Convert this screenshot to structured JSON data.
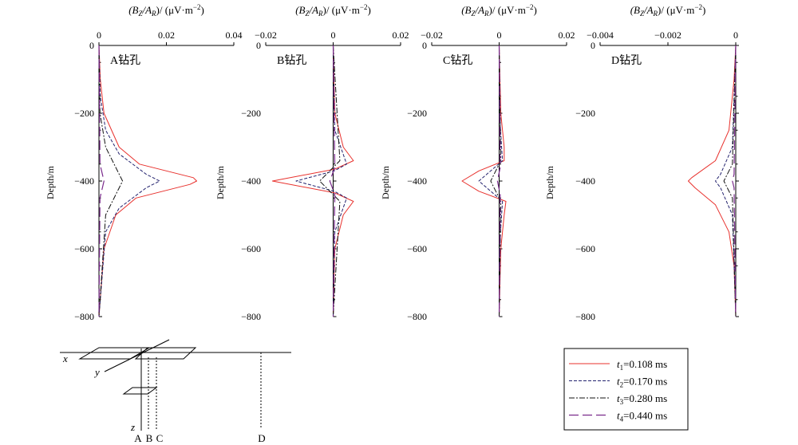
{
  "colors": {
    "t1": "#e8312d",
    "t2": "#23226e",
    "t3": "#111111",
    "t4": "#7a2b8c",
    "axis": "#000000"
  },
  "legend": [
    {
      "sym": "t",
      "sub": "1",
      "rest": "=0.108 ms"
    },
    {
      "sym": "t",
      "sub": "2",
      "rest": "=0.170 ms"
    },
    {
      "sym": "t",
      "sub": "3",
      "rest": "=0.280 ms"
    },
    {
      "sym": "t",
      "sub": "4",
      "rest": "=0.440 ms"
    }
  ],
  "panels": [
    {
      "label": "A钻孔",
      "ylabel": "Depth/m",
      "xhead": {
        "p1": "(B",
        "s1": "Z",
        "m": "/A",
        "s2": "R",
        "tail": ")/ (μV·m",
        "sup": "−2",
        "end": ")"
      },
      "xlim": [
        0,
        0.04
      ],
      "xticks": [
        "0",
        "0.02",
        "0.04"
      ],
      "yticks": [
        "0",
        "−200",
        "−400",
        "−600",
        "−800"
      ]
    },
    {
      "label": "B钻孔",
      "ylabel": "Depth/m",
      "xhead": {
        "p1": "(B",
        "s1": "Z",
        "m": "/A",
        "s2": "R",
        "tail": ")/ (μV·m",
        "sup": "−2",
        "end": ")"
      },
      "xlim": [
        -0.02,
        0.02
      ],
      "xticks": [
        "−0.02",
        "0",
        "0.02"
      ],
      "yticks": [
        "0",
        "−200",
        "−400",
        "−600",
        "−800"
      ]
    },
    {
      "label": "C钻孔",
      "ylabel": "Depth/m",
      "xhead": {
        "p1": "(B",
        "s1": "Z",
        "m": "/A",
        "s2": "R",
        "tail": ")/ (μV·m",
        "sup": "−2",
        "end": ")"
      },
      "xlim": [
        -0.02,
        0.02
      ],
      "xticks": [
        "−0.02",
        "0",
        "0.02"
      ],
      "yticks": [
        "0",
        "−200",
        "−400",
        "−600",
        "−800"
      ]
    },
    {
      "label": "D钻孔",
      "ylabel": "Depth/m",
      "xhead": {
        "p1": "(B",
        "s1": "Z",
        "m": "/A",
        "s2": "R",
        "tail": ")/ (μV·m",
        "sup": "−2",
        "end": ")"
      },
      "xlim": [
        -0.004,
        0
      ],
      "xticks": [
        "−0.004",
        "−0.002",
        "0"
      ],
      "yticks": [
        "0",
        "−200",
        "−400",
        "−600",
        "−800"
      ]
    }
  ],
  "schematic": {
    "x": "x",
    "y": "y",
    "z": "z",
    "holes": [
      "A",
      "B",
      "C",
      "D"
    ]
  },
  "chart_data": [
    {
      "type": "line",
      "title": "A钻孔",
      "xlabel": "(B_Z/A_R)/ (μV·m^-2)",
      "ylabel": "Depth/m",
      "xlim": [
        0,
        0.04
      ],
      "ylim": [
        -800,
        0
      ],
      "grid": false,
      "series": [
        {
          "name": "t1=0.108 ms",
          "points": [
            [
              0,
              0
            ],
            [
              0.0004,
              -100
            ],
            [
              0.0015,
              -200
            ],
            [
              0.006,
              -300
            ],
            [
              0.012,
              -350
            ],
            [
              0.028,
              -390
            ],
            [
              0.029,
              -400
            ],
            [
              0.027,
              -410
            ],
            [
              0.011,
              -450
            ],
            [
              0.005,
              -500
            ],
            [
              0.0015,
              -600
            ],
            [
              0,
              -800
            ]
          ]
        },
        {
          "name": "t2=0.170 ms",
          "points": [
            [
              0,
              0
            ],
            [
              0.0004,
              -150
            ],
            [
              0.002,
              -250
            ],
            [
              0.006,
              -320
            ],
            [
              0.014,
              -380
            ],
            [
              0.018,
              -400
            ],
            [
              0.014,
              -420
            ],
            [
              0.006,
              -480
            ],
            [
              0.002,
              -550
            ],
            [
              0,
              -800
            ]
          ]
        },
        {
          "name": "t3=0.280 ms",
          "points": [
            [
              0,
              0
            ],
            [
              0.0003,
              -200
            ],
            [
              0.002,
              -300
            ],
            [
              0.005,
              -360
            ],
            [
              0.007,
              -400
            ],
            [
              0.005,
              -440
            ],
            [
              0.002,
              -500
            ],
            [
              0,
              -800
            ]
          ]
        },
        {
          "name": "t4=0.440 ms",
          "points": [
            [
              0,
              0
            ],
            [
              0.0003,
              -350
            ],
            [
              0.0015,
              -400
            ],
            [
              0.0003,
              -450
            ],
            [
              0,
              -800
            ]
          ]
        }
      ]
    },
    {
      "type": "line",
      "title": "B钻孔",
      "xlabel": "(B_Z/A_R)/ (μV·m^-2)",
      "ylabel": "Depth/m",
      "xlim": [
        -0.02,
        0.02
      ],
      "ylim": [
        -800,
        0
      ],
      "grid": false,
      "series": [
        {
          "name": "t1=0.108 ms",
          "points": [
            [
              0,
              0
            ],
            [
              0.0005,
              -200
            ],
            [
              0.003,
              -300
            ],
            [
              0.006,
              -340
            ],
            [
              0.0005,
              -365
            ],
            [
              -0.018,
              -400
            ],
            [
              0.0005,
              -435
            ],
            [
              0.006,
              -460
            ],
            [
              0.003,
              -500
            ],
            [
              0.0005,
              -600
            ],
            [
              0,
              -800
            ]
          ]
        },
        {
          "name": "t2=0.170 ms",
          "points": [
            [
              0,
              0
            ],
            [
              0.0005,
              -250
            ],
            [
              0.004,
              -350
            ],
            [
              0.0003,
              -370
            ],
            [
              -0.011,
              -400
            ],
            [
              0.0003,
              -430
            ],
            [
              0.004,
              -450
            ],
            [
              0.0005,
              -550
            ],
            [
              0,
              -800
            ]
          ]
        },
        {
          "name": "t3=0.280 ms",
          "points": [
            [
              0,
              0
            ],
            [
              0.002,
              -340
            ],
            [
              -0.004,
              -400
            ],
            [
              0.002,
              -460
            ],
            [
              0,
              -800
            ]
          ]
        },
        {
          "name": "t4=0.440 ms",
          "points": [
            [
              0,
              0
            ],
            [
              0.0005,
              -360
            ],
            [
              -0.001,
              -400
            ],
            [
              0.0005,
              -440
            ],
            [
              0,
              -800
            ]
          ]
        }
      ]
    },
    {
      "type": "line",
      "title": "C钻孔",
      "xlabel": "(B_Z/A_R)/ (μV·m^-2)",
      "ylabel": "Depth/m",
      "xlim": [
        -0.02,
        0.02
      ],
      "ylim": [
        -800,
        0
      ],
      "grid": false,
      "series": [
        {
          "name": "t1=0.108 ms",
          "points": [
            [
              0,
              0
            ],
            [
              0.0005,
              -200
            ],
            [
              0.0015,
              -300
            ],
            [
              0.0015,
              -340
            ],
            [
              -0.006,
              -370
            ],
            [
              -0.011,
              -400
            ],
            [
              -0.006,
              -430
            ],
            [
              0.002,
              -460
            ],
            [
              0.0015,
              -500
            ],
            [
              0.0005,
              -600
            ],
            [
              0,
              -800
            ]
          ]
        },
        {
          "name": "t2=0.170 ms",
          "points": [
            [
              0,
              0
            ],
            [
              0.0004,
              -250
            ],
            [
              0.001,
              -340
            ],
            [
              -0.006,
              -400
            ],
            [
              0.001,
              -460
            ],
            [
              0.0004,
              -550
            ],
            [
              0,
              -800
            ]
          ]
        },
        {
          "name": "t3=0.280 ms",
          "points": [
            [
              0,
              0
            ],
            [
              0.0005,
              -340
            ],
            [
              -0.0025,
              -400
            ],
            [
              0.0005,
              -460
            ],
            [
              0,
              -800
            ]
          ]
        },
        {
          "name": "t4=0.440 ms",
          "points": [
            [
              0,
              0
            ],
            [
              0.0003,
              -360
            ],
            [
              -0.0005,
              -400
            ],
            [
              0.0003,
              -440
            ],
            [
              0,
              -800
            ]
          ]
        }
      ]
    },
    {
      "type": "line",
      "title": "D钻孔",
      "xlabel": "(B_Z/A_R)/ (μV·m^-2)",
      "ylabel": "Depth/m",
      "xlim": [
        -0.004,
        0
      ],
      "ylim": [
        -800,
        0
      ],
      "grid": false,
      "series": [
        {
          "name": "t1=0.108 ms",
          "points": [
            [
              0,
              0
            ],
            [
              -5e-05,
              -100
            ],
            [
              -0.0002,
              -250
            ],
            [
              -0.0006,
              -340
            ],
            [
              -0.0013,
              -390
            ],
            [
              -0.0014,
              -400
            ],
            [
              -0.0012,
              -420
            ],
            [
              -0.0006,
              -470
            ],
            [
              -0.0002,
              -550
            ],
            [
              -5e-05,
              -650
            ],
            [
              0,
              -800
            ]
          ]
        },
        {
          "name": "t2=0.170 ms",
          "points": [
            [
              0,
              0
            ],
            [
              -0.0001,
              -300
            ],
            [
              -0.00045,
              -380
            ],
            [
              -0.0006,
              -400
            ],
            [
              -0.00045,
              -420
            ],
            [
              -0.0001,
              -500
            ],
            [
              0,
              -800
            ]
          ]
        },
        {
          "name": "t3=0.280 ms",
          "points": [
            [
              0,
              0
            ],
            [
              -0.0001,
              -350
            ],
            [
              -0.00035,
              -400
            ],
            [
              -0.0001,
              -450
            ],
            [
              0,
              -800
            ]
          ]
        },
        {
          "name": "t4=0.440 ms",
          "points": [
            [
              0,
              0
            ],
            [
              -5e-05,
              -380
            ],
            [
              -0.0001,
              -400
            ],
            [
              -5e-05,
              -420
            ],
            [
              0,
              -800
            ]
          ]
        }
      ]
    }
  ]
}
